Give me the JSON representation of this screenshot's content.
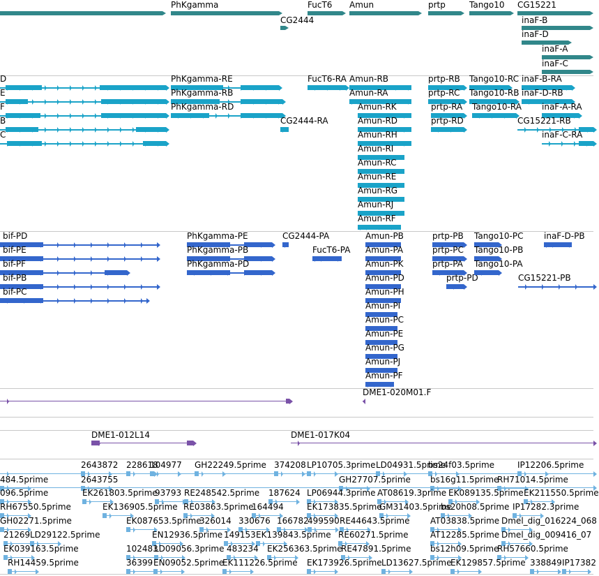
{
  "colors": {
    "gene": "#31878a",
    "transcript": "#1aa3c8",
    "protein": "#3366cc",
    "clone": "#7a52a8",
    "est": "#6fb2e0",
    "separator": "#c8c8c8"
  },
  "tracks": {
    "genes": [
      {
        "label": "",
        "rows": []
      },
      {
        "label": "PhKgamma"
      },
      {
        "label": "FucT6"
      },
      {
        "label": "Amun"
      },
      {
        "label": "prtp"
      },
      {
        "label": "Tango10"
      },
      {
        "label": "CG15221"
      },
      {
        "label": "CG2444"
      },
      {
        "label": "inaF-B"
      },
      {
        "label": "inaF-D"
      },
      {
        "label": "inaF-A"
      },
      {
        "label": "inaF-C"
      }
    ],
    "transcripts": [
      "D",
      "E",
      "F",
      "B",
      "C",
      "PhKgamma-RE",
      "PhKgamma-RB",
      "PhKgamma-RD",
      "FucT6-RA",
      "Amun-RB",
      "Amun-RA",
      "Amun-RK",
      "Amun-RD",
      "Amun-RH",
      "Amun-RI",
      "Amun-RC",
      "Amun-RE",
      "Amun-RG",
      "Amun-RJ",
      "Amun-RF",
      "CG2444-RA",
      "prtp-RB",
      "prtp-RC",
      "prtp-RA",
      "prtp-RD",
      "Tango10-RC",
      "Tango10-RB",
      "Tango10-RA",
      "inaF-B-RA",
      "inaF-D-RB",
      "inaF-A-RA",
      "CG15221-RB",
      "inaF-C-RA"
    ],
    "proteins": [
      "bif-PD",
      "bif-PE",
      "bif-PF",
      "bif-PB",
      "bif-PC",
      "PhKgamma-PE",
      "PhKgamma-PB",
      "PhKgamma-PD",
      "CG2444-PA",
      "FucT6-PA",
      "Amun-PB",
      "Amun-PA",
      "Amun-PK",
      "Amun-PD",
      "Amun-PH",
      "Amun-PI",
      "Amun-PC",
      "Amun-PE",
      "Amun-PG",
      "Amun-PJ",
      "Amun-PF",
      "prtp-PB",
      "prtp-PC",
      "prtp-PA",
      "prtp-PD",
      "Tango10-PC",
      "Tango10-PB",
      "Tango10-PA",
      "inaF-D-PB",
      "CG15221-PB"
    ],
    "clones": [
      "DME1-020M01.F",
      "DME1-012L14",
      "DME1-017K04"
    ],
    "ests": [
      "2643872",
      "228618",
      "104977",
      "GH22249.5prime",
      "374208",
      "LP10705.3prime",
      "LD04931.5prime",
      "bs24f03.5prime",
      "IP12206.5prime",
      "484.5prime",
      "2643755",
      "GH27707.5prime",
      "bs16g11.5prime",
      "RH71014.5prime",
      "096.5prime",
      "EK261803.5prime",
      "93793",
      "RE248542.5prime",
      "187624",
      "LP06944.3prime",
      "AT08619.3prime",
      "EK089135.5prime",
      "EK211550.5prime",
      "RH67550.5prime",
      "EK136905.5prime",
      "RE03863.5prime",
      "164494",
      "EK173835.5prime",
      "GM31403.5prime",
      "bs20h08.5prime",
      "IP17282.3prime",
      "GH02271.5prime",
      "EK087653.5prime",
      "326014",
      "330676",
      "166782",
      "499590",
      "RE44643.5prime",
      "AT03838.5prime",
      "Dmel_dig_016224_068",
      "21269",
      "LD29122.5prime",
      "EN12936.5prime",
      "149153",
      "EK139843.5prime",
      "RE60271.5prime",
      "AT12285.5prime",
      "Dmel_dig_009416_07",
      "EK039163.5prime",
      "102483",
      "LD09056.3prime",
      "483234",
      "EK256363.5prime",
      "RE47891.5prime",
      "bs12h09.5prime",
      "RH57660.5prime",
      "RH14459.5prime",
      "36399",
      "EN09052.5prime",
      "EK111226.5prime",
      "EK173926.5prime",
      "LD13627.5prime",
      "EK129857.5prime",
      "338849",
      "IP17382"
    ]
  }
}
